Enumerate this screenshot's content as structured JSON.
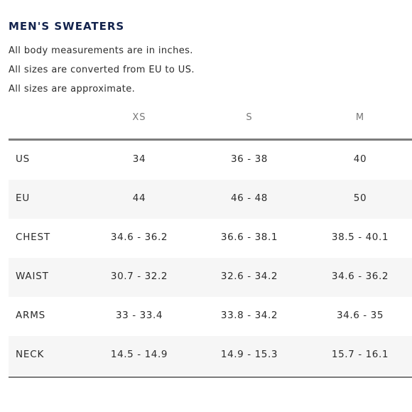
{
  "title": "MEN'S SWEATERS",
  "notes": [
    "All body measurements are in inches.",
    "All sizes are converted from EU to US.",
    "All sizes are approximate."
  ],
  "size_columns": [
    "XS",
    "S",
    "M"
  ],
  "rows": [
    {
      "label": "US",
      "values": [
        "34",
        "36 - 38",
        "40"
      ]
    },
    {
      "label": "EU",
      "values": [
        "44",
        "46 - 48",
        "50"
      ]
    },
    {
      "label": "CHEST",
      "values": [
        "34.6 - 36.2",
        "36.6 - 38.1",
        "38.5 - 40.1"
      ]
    },
    {
      "label": "WAIST",
      "values": [
        "30.7 - 32.2",
        "32.6 - 34.2",
        "34.6 - 36.2"
      ]
    },
    {
      "label": "ARMS",
      "values": [
        "33 - 33.4",
        "33.8 - 34.2",
        "34.6 - 35"
      ]
    },
    {
      "label": "NECK",
      "values": [
        "14.5 - 14.9",
        "14.9 - 15.3",
        "15.7 - 16.1"
      ]
    }
  ]
}
